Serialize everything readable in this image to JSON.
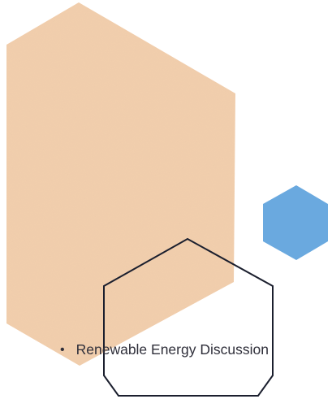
{
  "colors": {
    "background": "#ffffff",
    "large_hexagon_fill": "#f3cfad",
    "small_hexagon_fill": "#6aa9df",
    "outline_stroke": "#1b1f2e",
    "text": "#2f2f3a"
  },
  "bullet_item": {
    "text": "Renewable Energy Discussion"
  }
}
